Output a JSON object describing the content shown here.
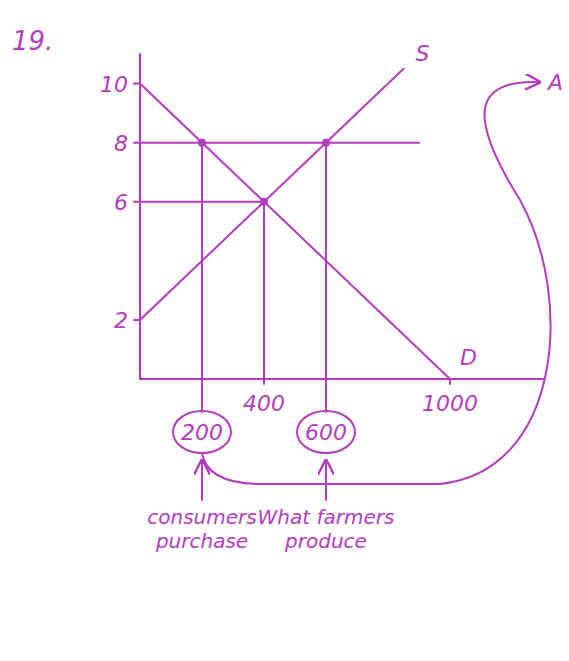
{
  "chart_data": {
    "type": "line",
    "title": "19.",
    "color": "#b43cbe",
    "xlim": [
      0,
      1300
    ],
    "ylim": [
      0,
      11
    ],
    "xticks": [
      400,
      1000
    ],
    "yticks": [
      2,
      6,
      8,
      10
    ],
    "series": [
      {
        "name": "S",
        "x": [
          0,
          850
        ],
        "values": [
          2,
          10.5
        ]
      },
      {
        "name": "D",
        "x": [
          0,
          1000
        ],
        "values": [
          10,
          0
        ]
      },
      {
        "x": [
          0,
          900
        ],
        "values": [
          8,
          8
        ]
      },
      {
        "x": [
          0,
          400
        ],
        "values": [
          6,
          6
        ]
      },
      {
        "x": [
          400,
          400
        ],
        "values": [
          6,
          0
        ]
      },
      {
        "x": [
          200,
          200
        ],
        "values": [
          8,
          0
        ]
      },
      {
        "x": [
          600,
          600
        ],
        "values": [
          8,
          0
        ]
      }
    ],
    "points": {
      "x": [
        200,
        400,
        600
      ],
      "values": [
        8,
        6,
        8
      ]
    },
    "circled_labels": [
      {
        "value": 200,
        "label": "200",
        "caption": "consumers purchase"
      },
      {
        "value": 600,
        "label": "600",
        "caption": "What farmers produce"
      }
    ],
    "annotations": [
      "A"
    ]
  }
}
